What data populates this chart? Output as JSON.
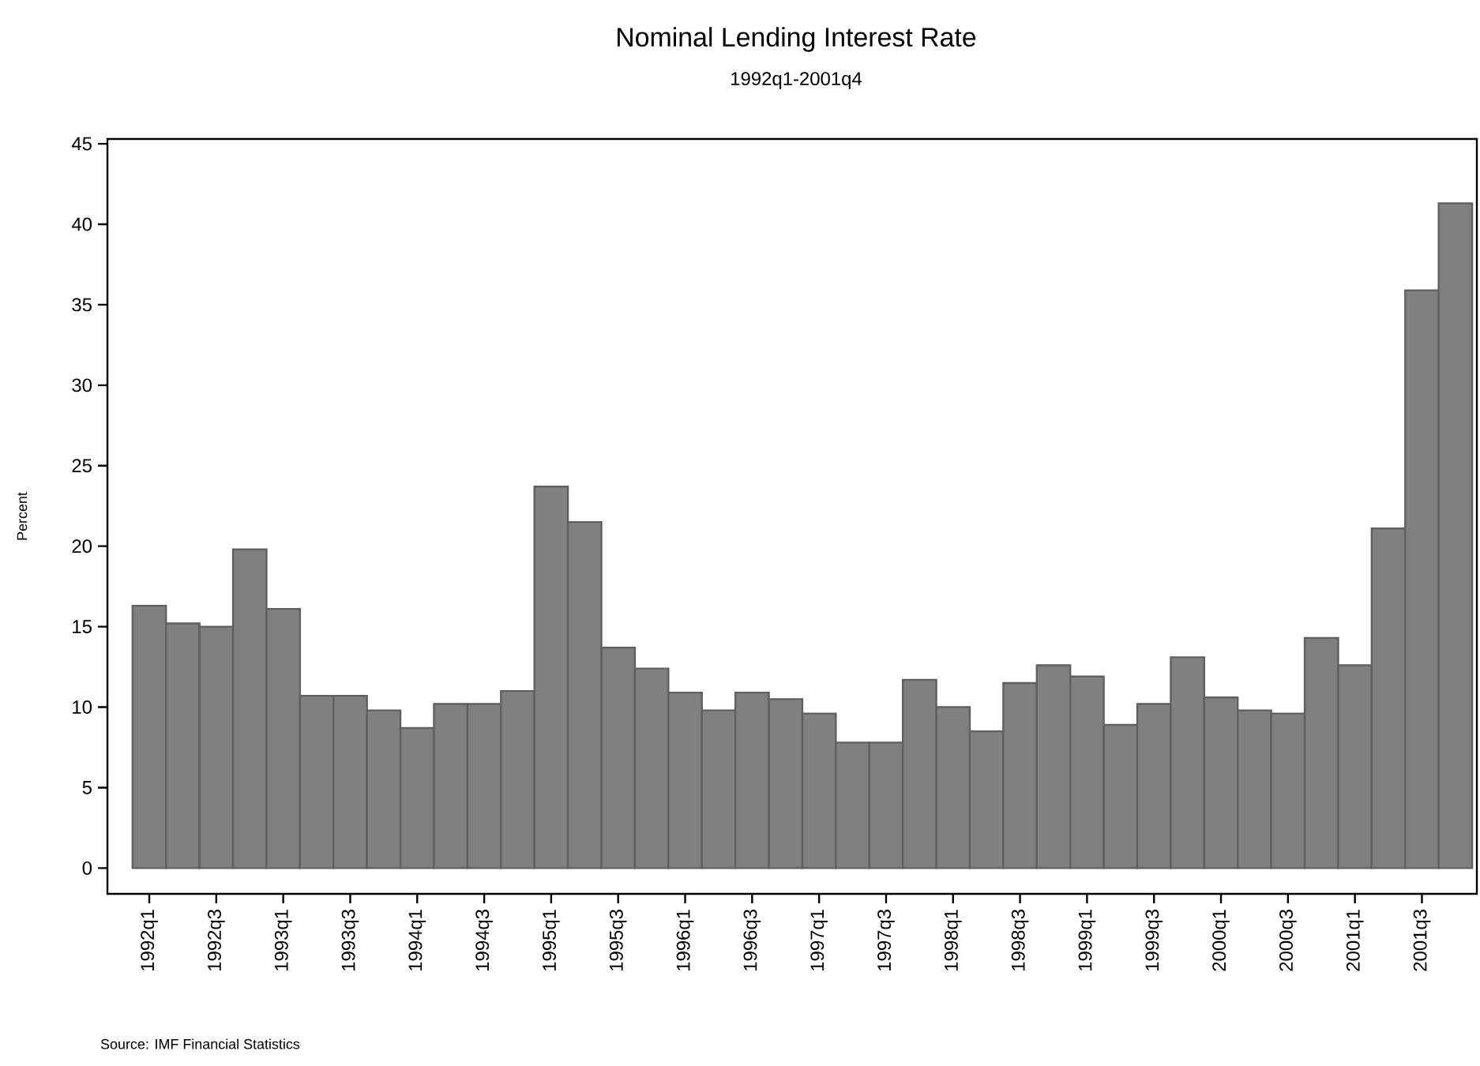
{
  "chart_data": {
    "type": "bar",
    "title": "Nominal Lending Interest Rate",
    "subtitle": "1992q1-2001q4",
    "ylabel": "Percent",
    "categories": [
      "1992q1",
      null,
      "1992q3",
      null,
      "1993q1",
      null,
      "1993q3",
      null,
      "1994q1",
      null,
      "1994q3",
      null,
      "1995q1",
      null,
      "1995q3",
      null,
      "1996q1",
      null,
      "1996q3",
      null,
      "1997q1",
      null,
      "1997q3",
      null,
      "1998q1",
      null,
      "1998q3",
      null,
      "1999q1",
      null,
      "1999q3",
      null,
      "2000q1",
      null,
      "2000q3",
      null,
      "2001q1",
      null,
      "2001q3",
      null
    ],
    "values": [
      16.3,
      15.2,
      15.0,
      19.8,
      16.1,
      10.7,
      10.7,
      9.8,
      8.7,
      10.2,
      10.2,
      11.0,
      23.7,
      21.5,
      13.7,
      12.4,
      10.9,
      9.8,
      10.9,
      10.5,
      9.6,
      7.8,
      7.8,
      11.7,
      10.0,
      8.5,
      11.5,
      12.6,
      11.9,
      8.9,
      10.2,
      13.1,
      10.6,
      9.8,
      9.6,
      14.3,
      12.6,
      21.1,
      35.9,
      41.3
    ],
    "color": "#808080",
    "ylim": [
      -1.6,
      45.3
    ],
    "yticks": [
      0,
      5,
      10,
      15,
      20,
      25,
      30,
      35,
      40,
      45
    ],
    "annotations": [
      "Source: IMF Financial Statistics"
    ]
  }
}
